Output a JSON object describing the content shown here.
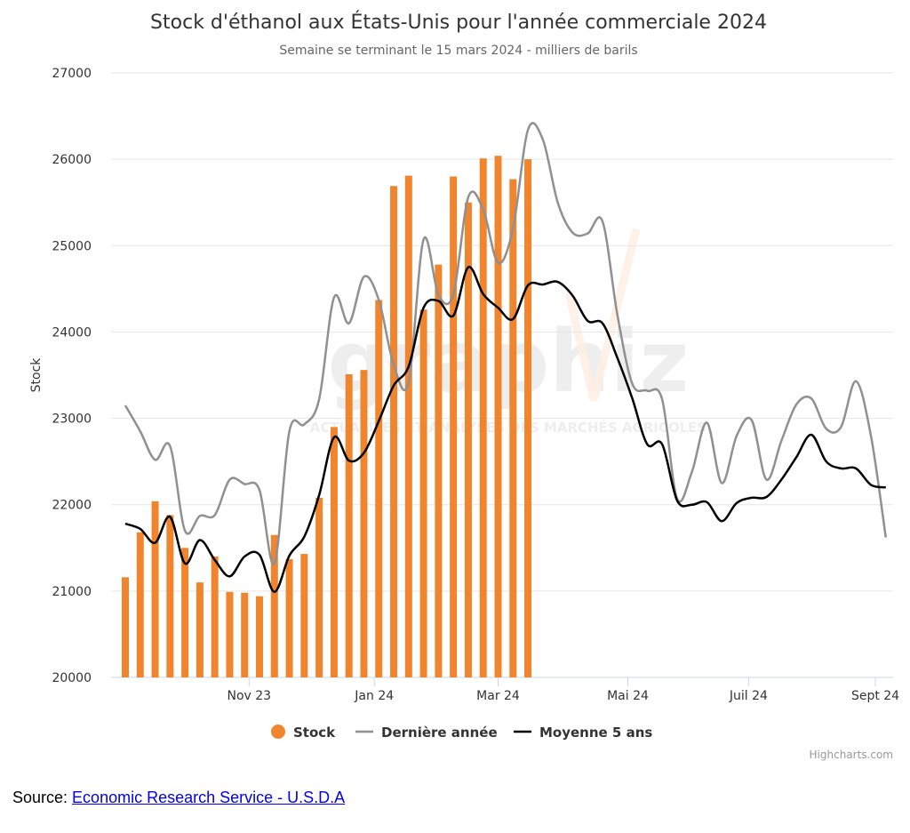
{
  "source": {
    "prefix": "Source: ",
    "link_text": "Economic Research Service - U.S.D.A"
  },
  "credits": "Highcharts.com",
  "watermark": {
    "text": "graphiz",
    "tagline": "ACTUALITÉS ET ANALYSES DES MARCHÉS AGRICOLES"
  },
  "chart_data": {
    "type": "bar",
    "title": "Stock d'éthanol aux États-Unis pour l'année commerciale 2024",
    "subtitle": "Semaine se terminant le 15 mars 2024 - milliers de barils",
    "ylabel": "Stock",
    "xlabel": "",
    "ylim": [
      20000,
      27000
    ],
    "ytick_labels": [
      "20000",
      "21000",
      "22000",
      "23000",
      "24000",
      "25000",
      "26000",
      "27000"
    ],
    "xtick_labels": [
      "Nov 23",
      "Jan 24",
      "Mar 24",
      "Mai 24",
      "Juil 24",
      "Sept 24"
    ],
    "xtick_weeks": [
      8.3,
      16.7,
      25.0,
      33.7,
      41.8,
      50.3
    ],
    "x_units": "weeks since start of marketing year (week 0 = first week)",
    "grid": true,
    "legend_position": "bottom",
    "colors": {
      "stock": "#f0852d",
      "last_year": "#909090",
      "avg5": "#000000"
    },
    "series": [
      {
        "name": "Stock",
        "kind": "bar",
        "values": [
          21160,
          21680,
          22040,
          21880,
          21500,
          21100,
          21400,
          20990,
          20980,
          20940,
          21650,
          21370,
          21430,
          22080,
          22900,
          23510,
          23560,
          24370,
          25690,
          25810,
          24260,
          24780,
          25800,
          25500,
          26010,
          26040,
          25770,
          26000
        ]
      },
      {
        "name": "Dernière année",
        "kind": "line",
        "values": [
          23150,
          22850,
          22520,
          22680,
          21700,
          21870,
          21880,
          22290,
          22240,
          22170,
          21320,
          22850,
          22930,
          23220,
          24400,
          24100,
          24640,
          24370,
          23620,
          23420,
          25070,
          24430,
          24440,
          25560,
          25420,
          24800,
          25200,
          26340,
          26230,
          25500,
          25150,
          25140,
          25280,
          24200,
          23400,
          23320,
          23220,
          22070,
          22380,
          22950,
          22250,
          22800,
          22980,
          22290,
          22740,
          23160,
          23230,
          22880,
          22900,
          23430,
          22800,
          21620
        ]
      },
      {
        "name": "Moyenne 5 ans",
        "kind": "line",
        "values": [
          21780,
          21720,
          21560,
          21860,
          21320,
          21590,
          21360,
          21170,
          21400,
          21420,
          20990,
          21410,
          21630,
          22110,
          22780,
          22510,
          22600,
          22970,
          23380,
          23600,
          24280,
          24360,
          24190,
          24750,
          24440,
          24280,
          24150,
          24540,
          24550,
          24580,
          24420,
          24130,
          24100,
          23700,
          23230,
          22700,
          22700,
          22050,
          22000,
          22030,
          21810,
          22020,
          22080,
          22090,
          22290,
          22550,
          22810,
          22500,
          22420,
          22420,
          22230,
          22200
        ]
      }
    ]
  }
}
